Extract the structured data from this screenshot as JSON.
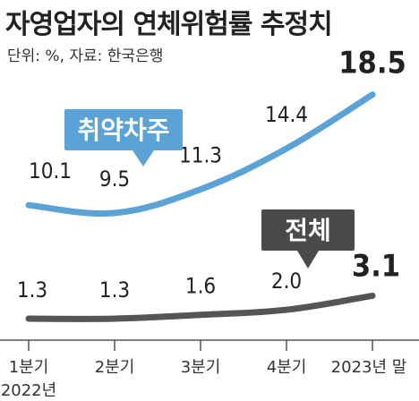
{
  "title": "자영업자의 연체위험률 추정치",
  "unit_note": "단위: %, 자료: 한국은행",
  "chart_data": {
    "type": "line",
    "categories": [
      "1분기",
      "2분기",
      "3분기",
      "4분기",
      "2023년 말"
    ],
    "year_label": "2022년",
    "series": [
      {
        "name": "취약차주",
        "values": [
          10.1,
          9.5,
          11.3,
          14.4,
          18.5
        ],
        "labels": [
          "10.1",
          "9.5",
          "11.3",
          "14.4",
          "18.5"
        ],
        "color": "#5ba3d6"
      },
      {
        "name": "전체",
        "values": [
          1.3,
          1.3,
          1.6,
          2.0,
          3.1
        ],
        "labels": [
          "1.3",
          "1.3",
          "1.6",
          "2.0",
          "3.1"
        ],
        "color": "#555555"
      }
    ],
    "grid": false,
    "legend": "callout labels on lines"
  }
}
